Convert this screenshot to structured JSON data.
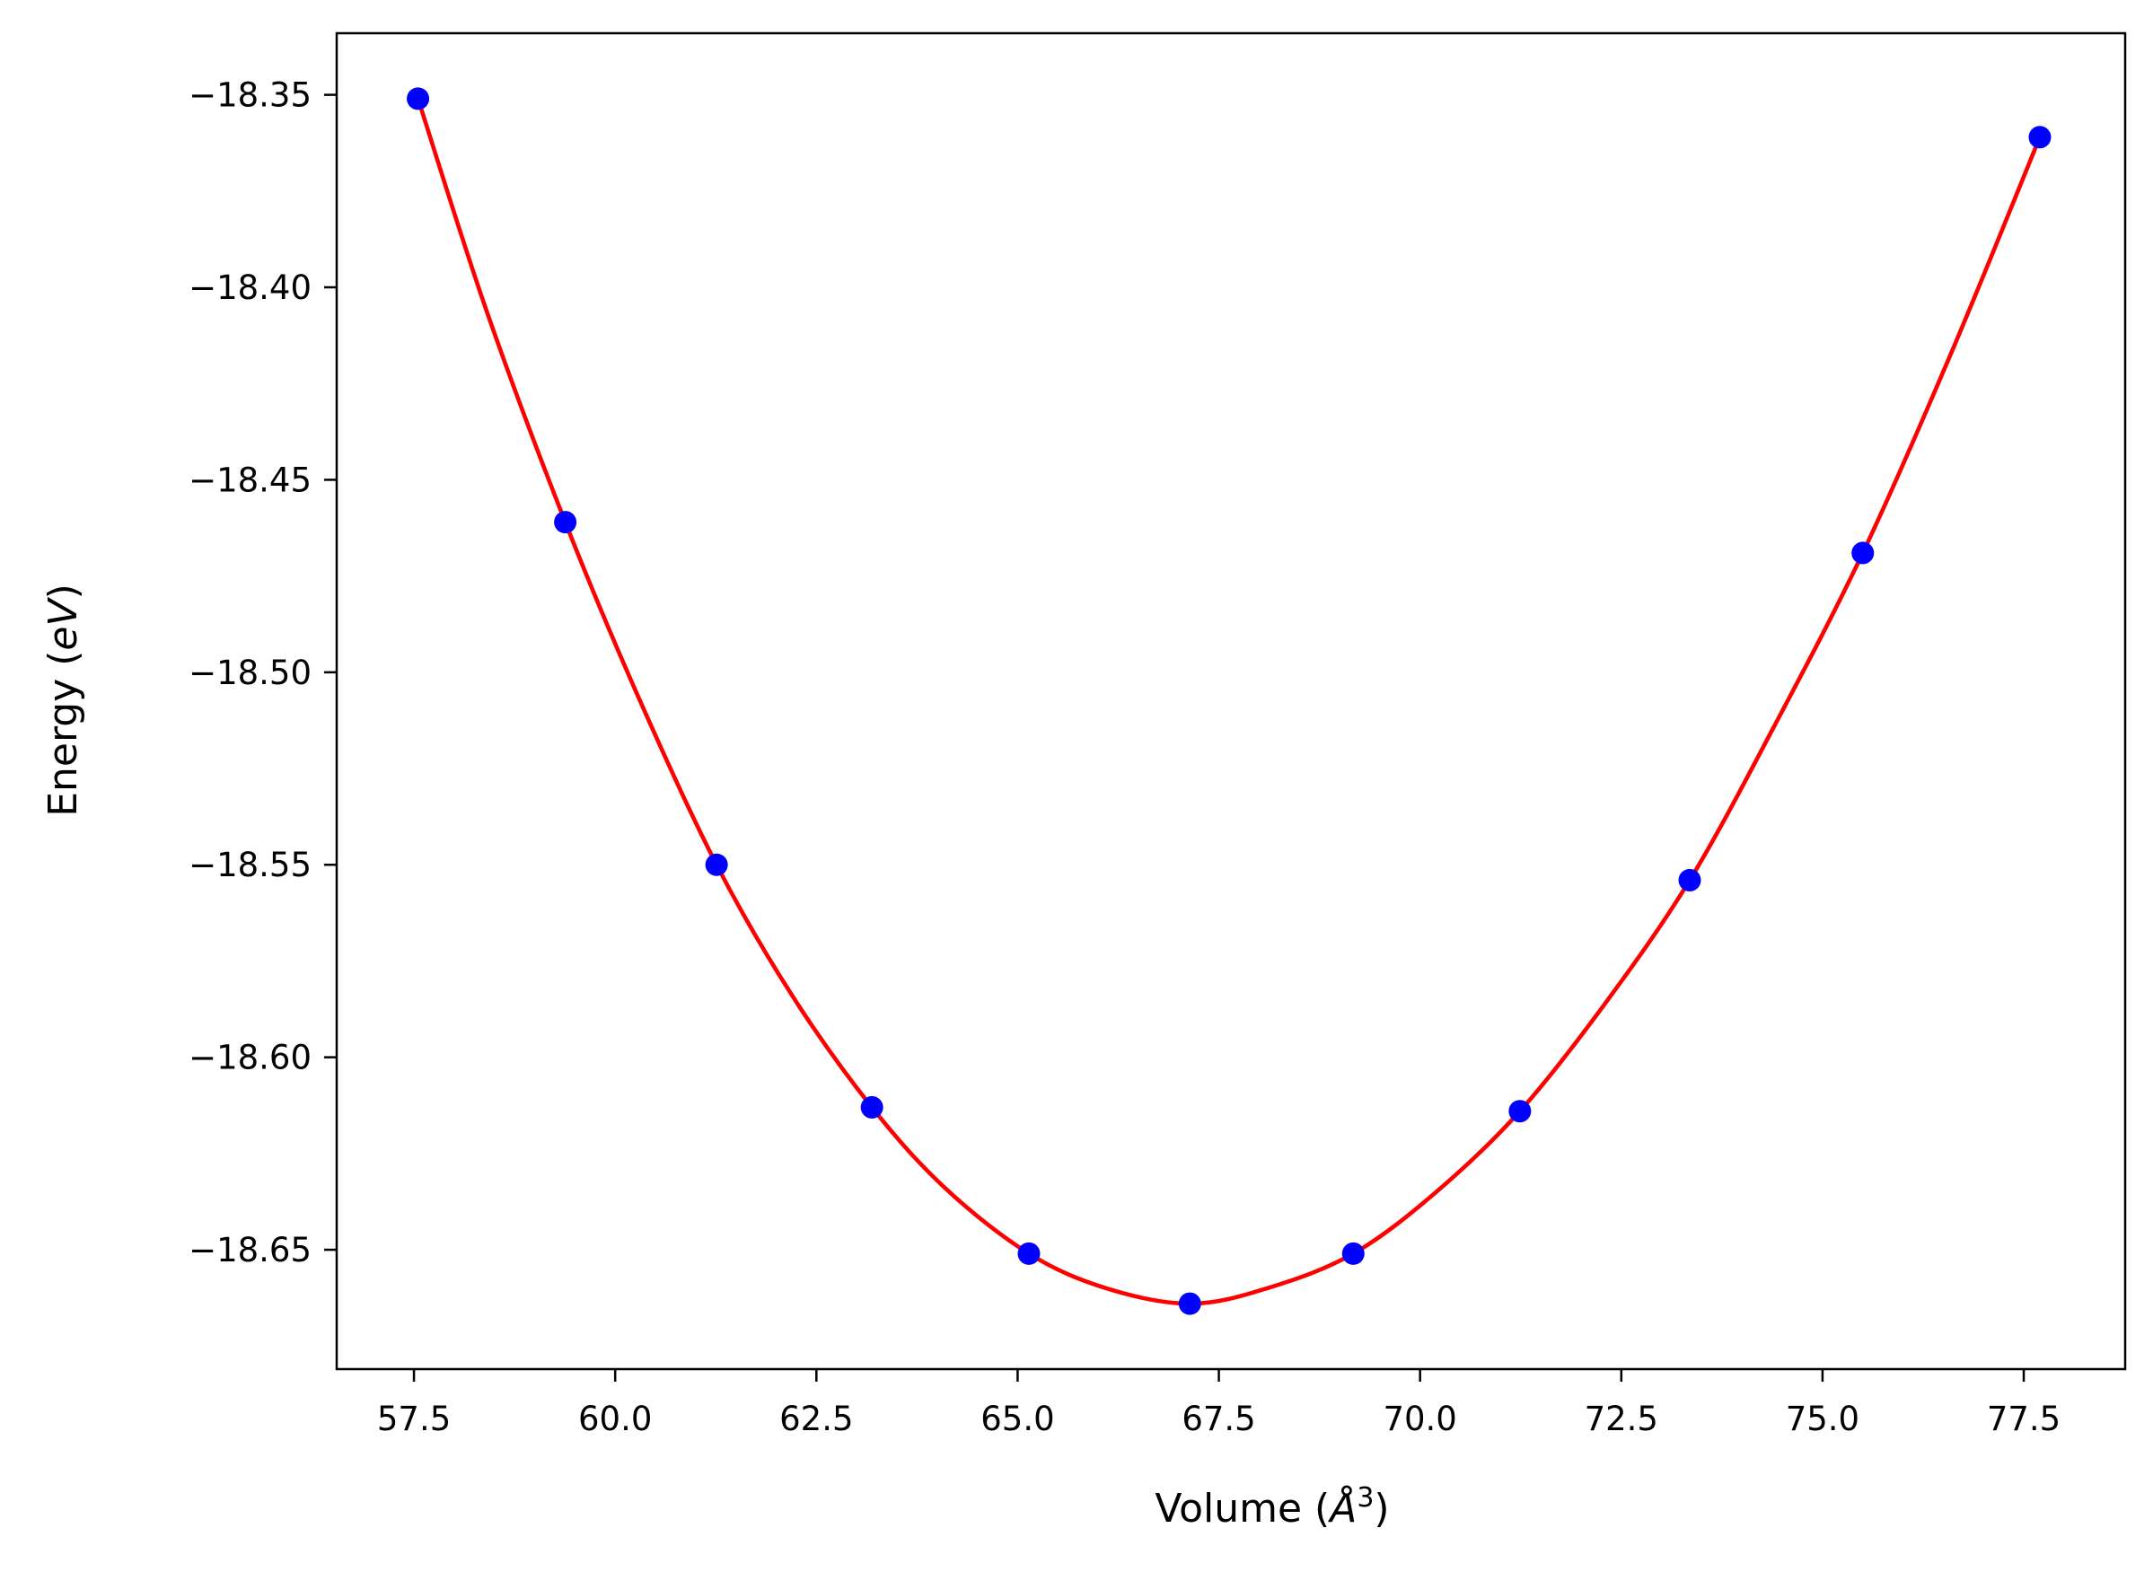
{
  "chart_data": {
    "type": "line",
    "title": "",
    "xlabel": "Volume (Å³)",
    "xlabel_parts": {
      "prefix": "Volume (",
      "symbol": "Å",
      "exponent": "3",
      "suffix": ")"
    },
    "ylabel": "Energy (eV)",
    "ylabel_parts": {
      "prefix": "Energy (",
      "unit": "eV",
      "suffix": ")"
    },
    "xlim": [
      56.54,
      78.76
    ],
    "ylim": [
      -18.681,
      -18.334
    ],
    "x_ticks": [
      57.5,
      60.0,
      62.5,
      65.0,
      67.5,
      70.0,
      72.5,
      75.0,
      77.5
    ],
    "x_tick_labels": [
      "57.5",
      "60.0",
      "62.5",
      "65.0",
      "67.5",
      "70.0",
      "72.5",
      "75.0",
      "77.5"
    ],
    "y_ticks": [
      -18.35,
      -18.4,
      -18.45,
      -18.5,
      -18.55,
      -18.6,
      -18.65
    ],
    "y_tick_labels": [
      "−18.35",
      "−18.40",
      "−18.45",
      "−18.50",
      "−18.55",
      "−18.60",
      "−18.65"
    ],
    "grid": false,
    "legend": "none",
    "series": [
      {
        "kind": "scatter",
        "color": "#0000ff",
        "x": [
          57.55,
          59.38,
          61.26,
          63.19,
          65.14,
          67.14,
          69.17,
          71.24,
          73.35,
          75.5,
          77.7
        ],
        "y": [
          -18.351,
          -18.461,
          -18.55,
          -18.613,
          -18.651,
          -18.664,
          -18.651,
          -18.614,
          -18.554,
          -18.469,
          -18.361
        ]
      },
      {
        "kind": "fit-line",
        "color": "#ff0000",
        "x": [
          57.55,
          58.4,
          59.38,
          60.3,
          61.26,
          62.2,
          63.19,
          64.1,
          65.14,
          66.1,
          67.14,
          68.1,
          69.17,
          70.2,
          71.24,
          72.3,
          73.35,
          74.4,
          75.5,
          76.6,
          77.7
        ],
        "y": [
          -18.351,
          -18.406,
          -18.461,
          -18.507,
          -18.55,
          -18.584,
          -18.613,
          -18.634,
          -18.651,
          -18.66,
          -18.664,
          -18.66,
          -18.651,
          -18.635,
          -18.614,
          -18.586,
          -18.554,
          -18.514,
          -18.469,
          -18.417,
          -18.361
        ]
      }
    ]
  }
}
